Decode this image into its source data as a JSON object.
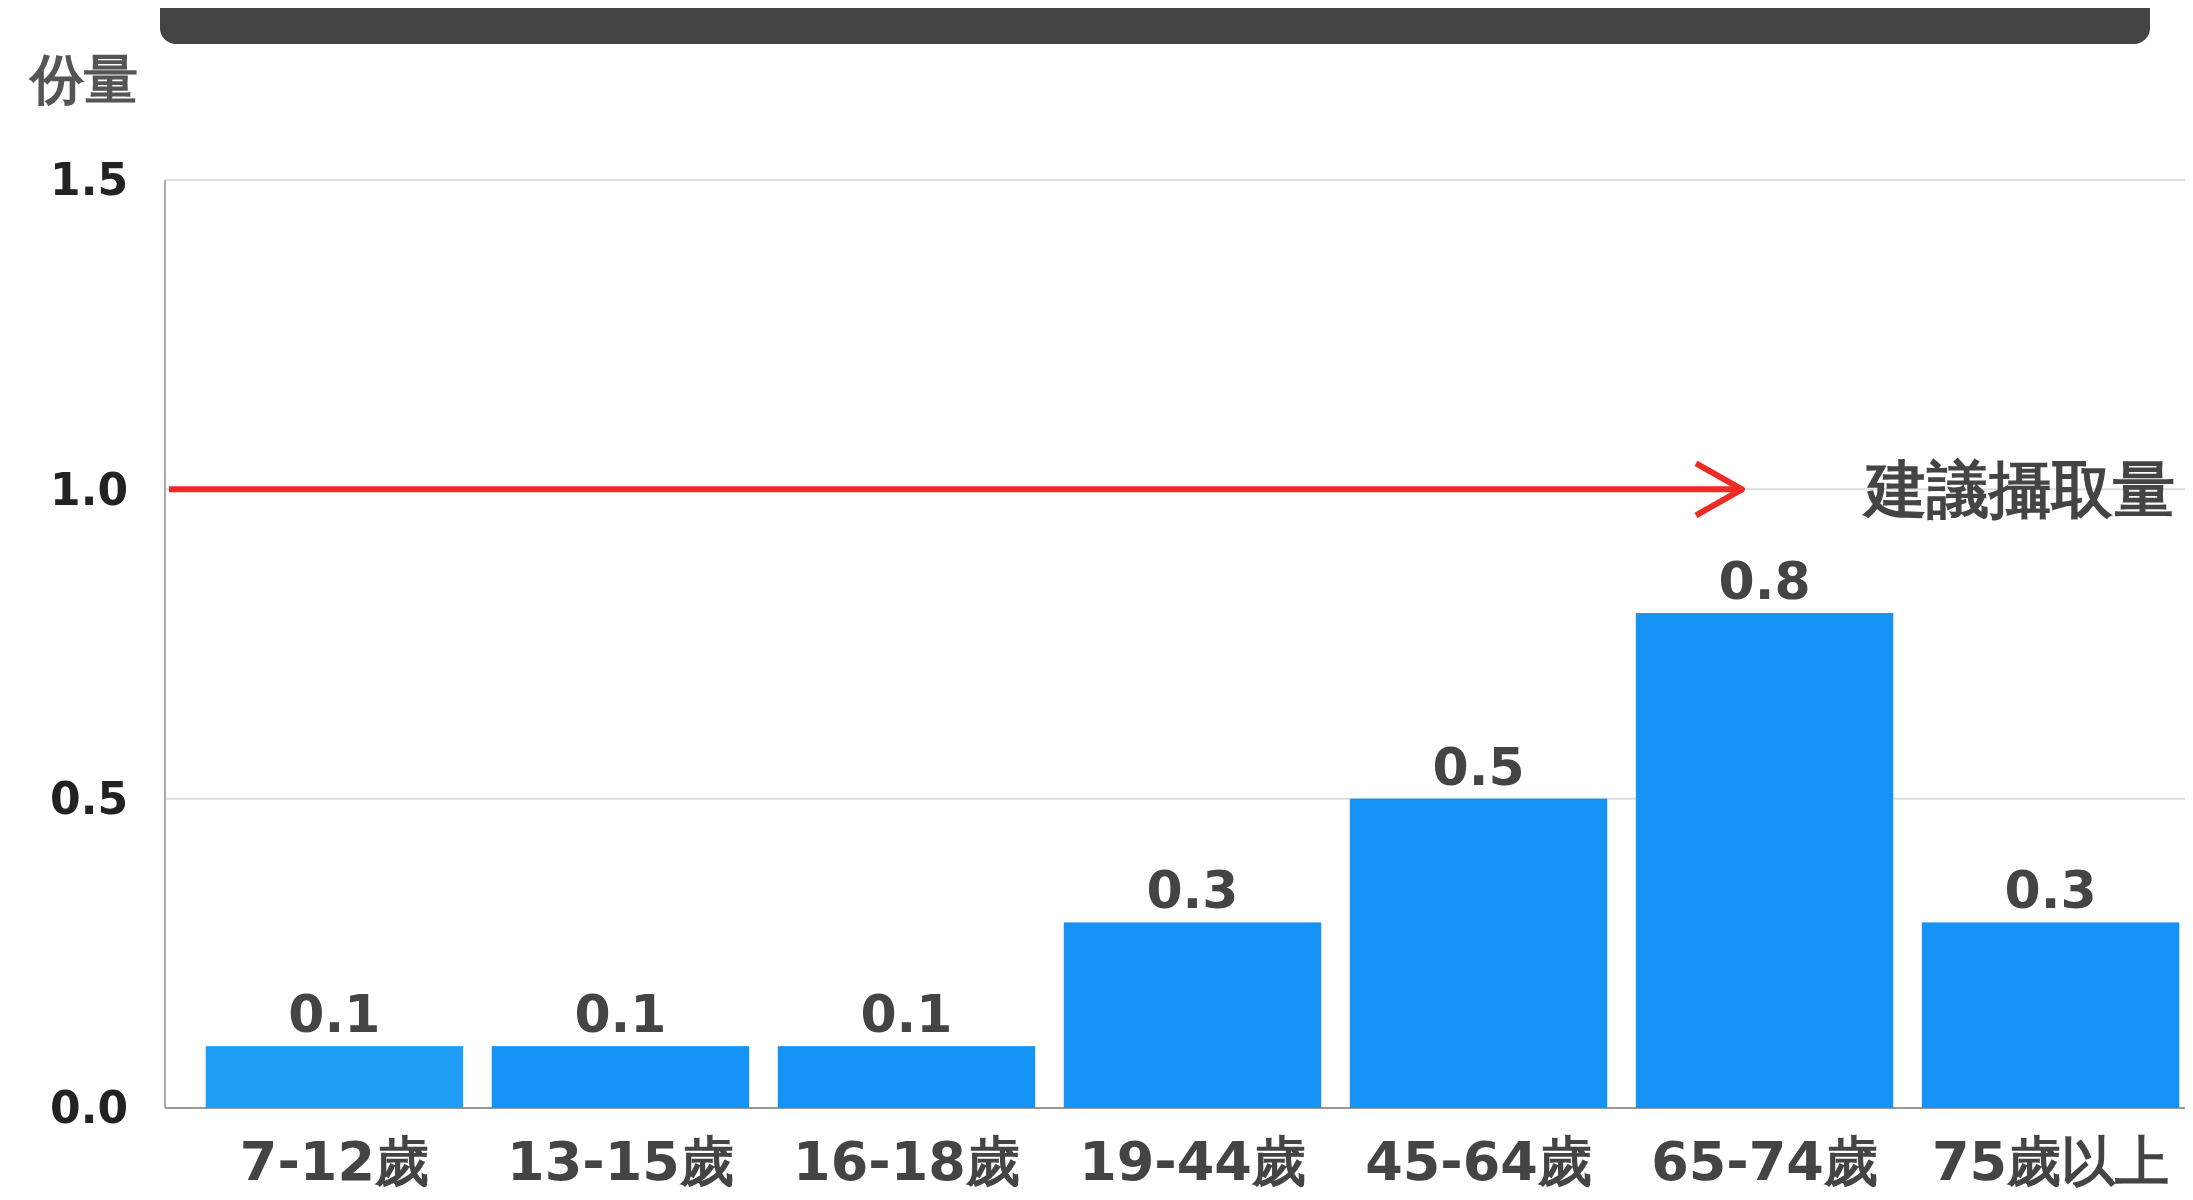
{
  "chart_data": {
    "type": "bar",
    "ylabel": "份量",
    "categories": [
      "7-12歲",
      "13-15歲",
      "16-18歲",
      "19-44歲",
      "45-64歲",
      "65-74歲",
      "75歲以上"
    ],
    "values": [
      0.1,
      0.1,
      0.1,
      0.3,
      0.5,
      0.8,
      0.3
    ],
    "colors": [
      "#1e9ef7",
      "#1593f5",
      "#1593f5",
      "#1593f5",
      "#1593f5",
      "#1593f5",
      "#1593f5"
    ],
    "ylim": [
      0,
      1.5
    ],
    "yticks": [
      {
        "value": 0,
        "label": "0.0"
      },
      {
        "value": 0.5,
        "label": "0.5"
      },
      {
        "value": 1,
        "label": "1.0"
      },
      {
        "value": 1.5,
        "label": "1.5"
      }
    ],
    "grid": "y",
    "data_labels": true,
    "ref_lines": [
      {
        "axis": "y",
        "value": 1,
        "label": "建議攝取量",
        "color": "#ee2a24"
      }
    ]
  }
}
